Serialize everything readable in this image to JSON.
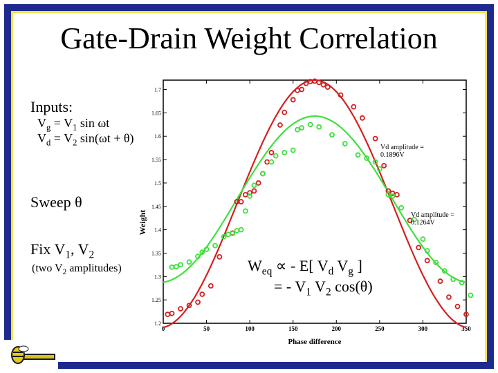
{
  "slide": {
    "title": "Gate-Drain Weight Correlation",
    "inputs_label": "Inputs:",
    "vg_equation_parts": [
      "V",
      "g",
      " = V",
      "1",
      " sin ωt"
    ],
    "vd_equation_parts": [
      "V",
      "d",
      " = V",
      "2",
      " sin(ωt + θ)"
    ],
    "sweep_label": "Sweep θ",
    "fix_label_parts": [
      "Fix V",
      "1",
      ", V",
      "2"
    ],
    "two_amp_parts": [
      "(two V",
      "2",
      " amplitudes)"
    ],
    "weq_line1_parts": [
      "W",
      "eq",
      " ∝ - E[ V",
      "d",
      " V",
      "g",
      " ]"
    ],
    "weq_line2_parts": [
      "= - V",
      "1",
      " V",
      "2",
      " cos(θ)"
    ],
    "amp_high_line1": "Vd amplitude =",
    "amp_high_line2": "0.1896V",
    "amp_low_line1": "Vd amplitude =",
    "amp_low_line2": "0.1264V"
  },
  "colors": {
    "frame_blue": "#1f2a8f",
    "frame_yellow": "#f6e84a",
    "red_series": "#d32020",
    "green_series": "#3ee03e"
  },
  "chart_data": {
    "type": "scatter",
    "title": "",
    "xlabel": "Phase difference",
    "ylabel": "Weight",
    "xlim": [
      0,
      350
    ],
    "ylim": [
      1.2,
      1.72
    ],
    "xticks": [
      0,
      50,
      100,
      150,
      200,
      250,
      300,
      350
    ],
    "yticks": [
      1.2,
      1.25,
      1.3,
      1.35,
      1.4,
      1.45,
      1.5,
      1.55,
      1.6,
      1.65,
      1.7
    ],
    "ytick_labels": [
      "1.2",
      "1.25",
      "1.3",
      "1.35",
      "1.4",
      "1.45",
      "1.5",
      "1.55",
      "1.6",
      "1.65",
      "1.7"
    ],
    "grid": false,
    "series": [
      {
        "name": "Vd amplitude = 0.1896V",
        "color": "#d32020",
        "fit": {
          "mean": 1.455,
          "amplitude": 0.265,
          "phase_center": 175
        },
        "points": [
          [
            5,
            1.219
          ],
          [
            10,
            1.221
          ],
          [
            20,
            1.231
          ],
          [
            30,
            1.238
          ],
          [
            40,
            1.245
          ],
          [
            45,
            1.262
          ],
          [
            55,
            1.28
          ],
          [
            65,
            1.342
          ],
          [
            80,
            1.393
          ],
          [
            85,
            1.46
          ],
          [
            90,
            1.46
          ],
          [
            95,
            1.475
          ],
          [
            100,
            1.479
          ],
          [
            105,
            1.483
          ],
          [
            110,
            1.5
          ],
          [
            115,
            1.52
          ],
          [
            120,
            1.545
          ],
          [
            125,
            1.565
          ],
          [
            135,
            1.624
          ],
          [
            140,
            1.651
          ],
          [
            150,
            1.678
          ],
          [
            155,
            1.698
          ],
          [
            160,
            1.7
          ],
          [
            165,
            1.713
          ],
          [
            170,
            1.717
          ],
          [
            175,
            1.718
          ],
          [
            180,
            1.715
          ],
          [
            185,
            1.71
          ],
          [
            190,
            1.705
          ],
          [
            205,
            1.688
          ],
          [
            220,
            1.663
          ],
          [
            230,
            1.639
          ],
          [
            245,
            1.595
          ],
          [
            255,
            1.537
          ],
          [
            260,
            1.483
          ],
          [
            265,
            1.478
          ],
          [
            270,
            1.475
          ],
          [
            285,
            1.42
          ],
          [
            295,
            1.362
          ],
          [
            305,
            1.334
          ],
          [
            320,
            1.29
          ],
          [
            330,
            1.256
          ],
          [
            340,
            1.236
          ],
          [
            350,
            1.219
          ]
        ]
      },
      {
        "name": "Vd amplitude = 0.1264V",
        "color": "#3ee03e",
        "fit": {
          "mean": 1.465,
          "amplitude": 0.178,
          "phase_center": 175
        },
        "points": [
          [
            10,
            1.32
          ],
          [
            15,
            1.321
          ],
          [
            20,
            1.325
          ],
          [
            30,
            1.331
          ],
          [
            40,
            1.343
          ],
          [
            45,
            1.352
          ],
          [
            50,
            1.358
          ],
          [
            60,
            1.366
          ],
          [
            70,
            1.385
          ],
          [
            75,
            1.39
          ],
          [
            80,
            1.392
          ],
          [
            85,
            1.398
          ],
          [
            90,
            1.4
          ],
          [
            95,
            1.44
          ],
          [
            100,
            1.472
          ],
          [
            105,
            1.495
          ],
          [
            115,
            1.52
          ],
          [
            125,
            1.545
          ],
          [
            130,
            1.558
          ],
          [
            140,
            1.565
          ],
          [
            150,
            1.57
          ],
          [
            155,
            1.614
          ],
          [
            160,
            1.618
          ],
          [
            170,
            1.625
          ],
          [
            180,
            1.62
          ],
          [
            195,
            1.603
          ],
          [
            210,
            1.584
          ],
          [
            225,
            1.56
          ],
          [
            235,
            1.553
          ],
          [
            245,
            1.545
          ],
          [
            250,
            1.53
          ],
          [
            260,
            1.475
          ],
          [
            265,
            1.472
          ],
          [
            275,
            1.447
          ],
          [
            290,
            1.422
          ],
          [
            300,
            1.38
          ],
          [
            305,
            1.355
          ],
          [
            315,
            1.33
          ],
          [
            325,
            1.312
          ],
          [
            335,
            1.294
          ],
          [
            345,
            1.287
          ],
          [
            355,
            1.26
          ]
        ]
      }
    ]
  }
}
